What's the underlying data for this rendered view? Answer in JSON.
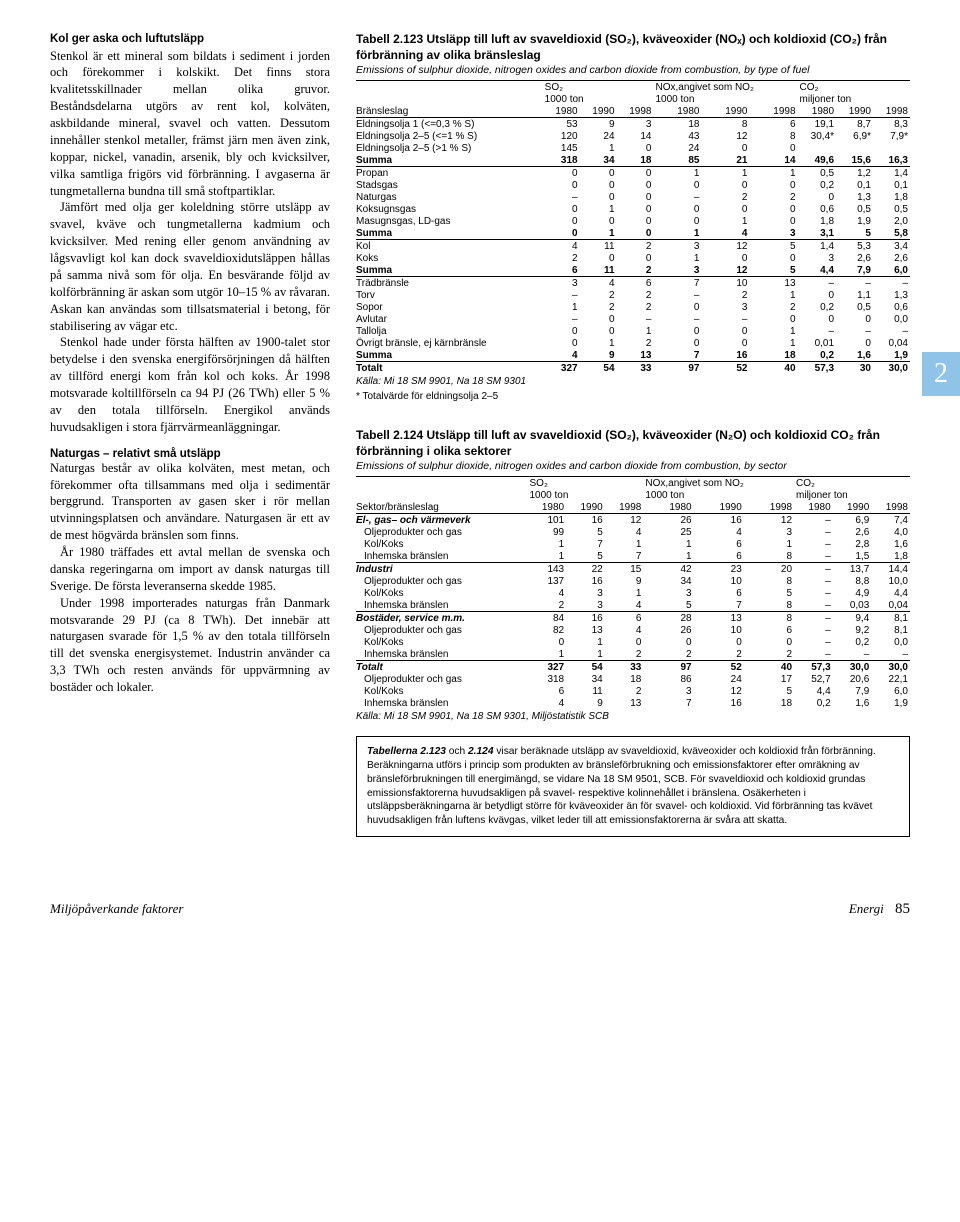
{
  "left": {
    "h1": "Kol ger aska och luftutsläpp",
    "p1": "Stenkol är ett mineral som bildats i sediment i jorden och förekommer i kolskikt. Det finns stora kvalitetsskillnader mellan olika gruvor. Beståndsdelarna utgörs av rent kol, kolväten, askbildande mineral, svavel och vatten. Dessutom innehåller stenkol metaller, främst järn men även zink, koppar, nickel, vanadin, arsenik, bly och kvicksilver, vilka samtliga frigörs vid förbränning. I avgaserna är tungmetallerna bundna till små stoftpartiklar.",
    "p2": "Jämfört med olja ger koleldning större utsläpp av svavel, kväve och tungmetallerna kadmium och kvicksilver. Med rening eller genom användning av lågsvavligt kol kan dock svaveldioxidutsläppen hållas på samma nivå som för olja. En besvärande följd av kolförbränning är askan som utgör 10–15 % av råvaran. Askan kan användas som tillsatsmaterial i betong, för stabilisering av vägar etc.",
    "p3": "Stenkol hade under första hälften av 1900-talet stor betydelse i den svenska energiförsörjningen då hälften av tillförd energi kom från kol och koks. År 1998 motsvarade koltillförseln ca 94 PJ (26 TWh) eller 5 % av den totala tillförseln. Energikol används huvudsakligen i stora fjärrvärmeanläggningar.",
    "h2": "Naturgas – relativt små utsläpp",
    "p4": "Naturgas består av olika kolväten, mest metan, och förekommer ofta tillsammans med olja i sedimentär berggrund. Transporten av gasen sker i rör mellan utvinningsplatsen och användare. Naturgasen är ett av de mest högvärda bränslen som finns.",
    "p5": "År 1980 träffades ett avtal mellan de svenska och danska regeringarna om import av dansk naturgas till Sverige. De första leveranserna skedde 1985.",
    "p6": "Under 1998 importerades naturgas från Danmark motsvarande 29 PJ (ca 8 TWh). Det innebär att naturgasen svarade för 1,5 % av den totala tillförseln till det svenska energisystemet. Industrin använder ca 3,3 TWh och resten används för uppvärmning av bostäder och lokaler."
  },
  "tabBadge": "2",
  "t123": {
    "title": "Tabell 2.123  Utsläpp till luft av svaveldioxid (SO₂), kväveoxider (NOₓ) och koldioxid (CO₂) från förbränning av olika bränsleslag",
    "sub": "Emissions of sulphur dioxide, nitrogen oxides and carbon dioxide from combustion, by type of fuel",
    "grp1": "SO₂",
    "grp2": "NOx,angivet som NO₂",
    "grp3": "CO₂",
    "u1": "1000 ton",
    "u2": "1000 ton",
    "u3": "miljoner ton",
    "colhead": "Bränsleslag",
    "years": [
      "1980",
      "1990",
      "1998",
      "1980",
      "1990",
      "1998",
      "1980",
      "1990",
      "1998"
    ],
    "rows": [
      [
        "Eldningsolja 1 (<=0,3 % S)",
        "53",
        "9",
        "3",
        "18",
        "8",
        "6",
        "19,1",
        "8,7",
        "8,3"
      ],
      [
        "Eldningsolja 2–5 (<=1 % S)",
        "120",
        "24",
        "14",
        "43",
        "12",
        "8",
        "30,4*",
        "6,9*",
        "7,9*"
      ],
      [
        "Eldningsolja 2–5 (>1 % S)",
        "145",
        "1",
        "0",
        "24",
        "0",
        "0",
        "",
        "",
        ""
      ],
      [
        "Summa",
        "318",
        "34",
        "18",
        "85",
        "21",
        "14",
        "49,6",
        "15,6",
        "16,3"
      ],
      [
        "Propan",
        "0",
        "0",
        "0",
        "1",
        "1",
        "1",
        "0,5",
        "1,2",
        "1,4"
      ],
      [
        "Stadsgas",
        "0",
        "0",
        "0",
        "0",
        "0",
        "0",
        "0,2",
        "0,1",
        "0,1"
      ],
      [
        "Naturgas",
        "–",
        "0",
        "0",
        "–",
        "2",
        "2",
        "0",
        "1,3",
        "1,8"
      ],
      [
        "Koksugnsgas",
        "0",
        "1",
        "0",
        "0",
        "0",
        "0",
        "0,6",
        "0,5",
        "0,5"
      ],
      [
        "Masugnsgas, LD-gas",
        "0",
        "0",
        "0",
        "0",
        "1",
        "0",
        "1,8",
        "1,9",
        "2,0"
      ],
      [
        "Summa",
        "0",
        "1",
        "0",
        "1",
        "4",
        "3",
        "3,1",
        "5",
        "5,8"
      ],
      [
        "Kol",
        "4",
        "11",
        "2",
        "3",
        "12",
        "5",
        "1,4",
        "5,3",
        "3,4"
      ],
      [
        "Koks",
        "2",
        "0",
        "0",
        "1",
        "0",
        "0",
        "3",
        "2,6",
        "2,6"
      ],
      [
        "Summa",
        "6",
        "11",
        "2",
        "3",
        "12",
        "5",
        "4,4",
        "7,9",
        "6,0"
      ],
      [
        "Trädbränsle",
        "3",
        "4",
        "6",
        "7",
        "10",
        "13",
        "–",
        "–",
        "–"
      ],
      [
        "Torv",
        "–",
        "2",
        "2",
        "–",
        "2",
        "1",
        "0",
        "1,1",
        "1,3"
      ],
      [
        "Sopor",
        "1",
        "2",
        "2",
        "0",
        "3",
        "2",
        "0,2",
        "0,5",
        "0,6"
      ],
      [
        "Avlutar",
        "–",
        "0",
        "–",
        "–",
        "–",
        "0",
        "0",
        "0",
        "0,0"
      ],
      [
        "Tallolja",
        "0",
        "0",
        "1",
        "0",
        "0",
        "1",
        "–",
        "–",
        "–"
      ],
      [
        "Övrigt bränsle, ej kärnbränsle",
        "0",
        "1",
        "2",
        "0",
        "0",
        "1",
        "0,01",
        "0",
        "0,04"
      ],
      [
        "Summa",
        "4",
        "9",
        "13",
        "7",
        "16",
        "18",
        "0,2",
        "1,6",
        "1,9"
      ],
      [
        "Totalt",
        "327",
        "54",
        "33",
        "97",
        "52",
        "40",
        "57,3",
        "30",
        "30,0"
      ]
    ],
    "src": "Källa: Mi 18 SM 9901, Na 18 SM 9301",
    "note": "* Totalvärde för eldningsolja 2–5"
  },
  "t124": {
    "title": "Tabell 2.124  Utsläpp till luft av svaveldioxid (SO₂), kväveoxider (N₂O) och koldioxid CO₂ från förbränning i olika sektorer",
    "sub": "Emissions of sulphur dioxide, nitrogen oxides and carbon dioxide from combustion, by sector",
    "grp1": "SO₂",
    "grp2": "NOx,angivet som NO₂",
    "grp3": "CO₂",
    "u1": "1000 ton",
    "u2": "1000 ton",
    "u3": "miljoner ton",
    "colhead": "Sektor/bränsleslag",
    "years": [
      "1980",
      "1990",
      "1998",
      "1980",
      "1990",
      "1998",
      "1980",
      "1990",
      "1998"
    ],
    "rows": [
      [
        "El-, gas– och värmeverk",
        "101",
        "16",
        "12",
        "26",
        "16",
        "12",
        "–",
        "6,9",
        "7,4"
      ],
      [
        "Oljeprodukter och gas",
        "99",
        "5",
        "4",
        "25",
        "4",
        "3",
        "–",
        "2,6",
        "4,0"
      ],
      [
        "Kol/Koks",
        "1",
        "7",
        "1",
        "1",
        "6",
        "1",
        "–",
        "2,8",
        "1,6"
      ],
      [
        "Inhemska bränslen",
        "1",
        "5",
        "7",
        "1",
        "6",
        "8",
        "–",
        "1,5",
        "1,8"
      ],
      [
        "Industri",
        "143",
        "22",
        "15",
        "42",
        "23",
        "20",
        "–",
        "13,7",
        "14,4"
      ],
      [
        "Oljeprodukter och gas",
        "137",
        "16",
        "9",
        "34",
        "10",
        "8",
        "–",
        "8,8",
        "10,0"
      ],
      [
        "Kol/Koks",
        "4",
        "3",
        "1",
        "3",
        "6",
        "5",
        "–",
        "4,9",
        "4,4"
      ],
      [
        "Inhemska bränslen",
        "2",
        "3",
        "4",
        "5",
        "7",
        "8",
        "–",
        "0,03",
        "0,04"
      ],
      [
        "Bostäder, service m.m.",
        "84",
        "16",
        "6",
        "28",
        "13",
        "8",
        "–",
        "9,4",
        "8,1"
      ],
      [
        "Oljeprodukter och gas",
        "82",
        "13",
        "4",
        "26",
        "10",
        "6",
        "–",
        "9,2",
        "8,1"
      ],
      [
        "Kol/Koks",
        "0",
        "1",
        "0",
        "0",
        "0",
        "0",
        "–",
        "0,2",
        "0,0"
      ],
      [
        "Inhemska bränslen",
        "1",
        "1",
        "2",
        "2",
        "2",
        "2",
        "–",
        "–",
        "–"
      ],
      [
        "Totalt",
        "327",
        "54",
        "33",
        "97",
        "52",
        "40",
        "57,3",
        "30,0",
        "30,0"
      ],
      [
        "Oljeprodukter och gas",
        "318",
        "34",
        "18",
        "86",
        "24",
        "17",
        "52,7",
        "20,6",
        "22,1"
      ],
      [
        "Kol/Koks",
        "6",
        "11",
        "2",
        "3",
        "12",
        "5",
        "4,4",
        "7,9",
        "6,0"
      ],
      [
        "Inhemska bränslen",
        "4",
        "9",
        "13",
        "7",
        "16",
        "18",
        "0,2",
        "1,6",
        "1,9"
      ]
    ],
    "src": "Källa: Mi 18 SM 9901, Na 18 SM 9301, Miljöstatistik SCB"
  },
  "infoBox": "Tabellerna 2.123 och 2.124 visar beräknade utsläpp av svaveldioxid, kväveoxider och koldioxid från förbränning. Beräkningarna utförs i princip som produkten av bränsleförbrukning och emissionsfaktorer efter omräkning av bränsleförbrukningen till energimängd, se vidare Na 18 SM 9501, SCB. För svaveldioxid och koldioxid grundas emissionsfaktorerna huvudsakligen på svavel- respektive kolinnehållet i bränslena. Osäkerheten i utsläppsberäkningarna är betydligt större för kväveoxider än för svavel- och koldioxid. Vid förbränning tas kvävet huvudsakligen från luftens kvävgas, vilket leder till att emissionsfaktorerna är svåra att skatta.",
  "infoBoxBoldPrefix": "Tabellerna 2.123",
  "footer": {
    "left": "Miljöpåverkande faktorer",
    "rightLabel": "Energi",
    "pageNum": "85"
  }
}
